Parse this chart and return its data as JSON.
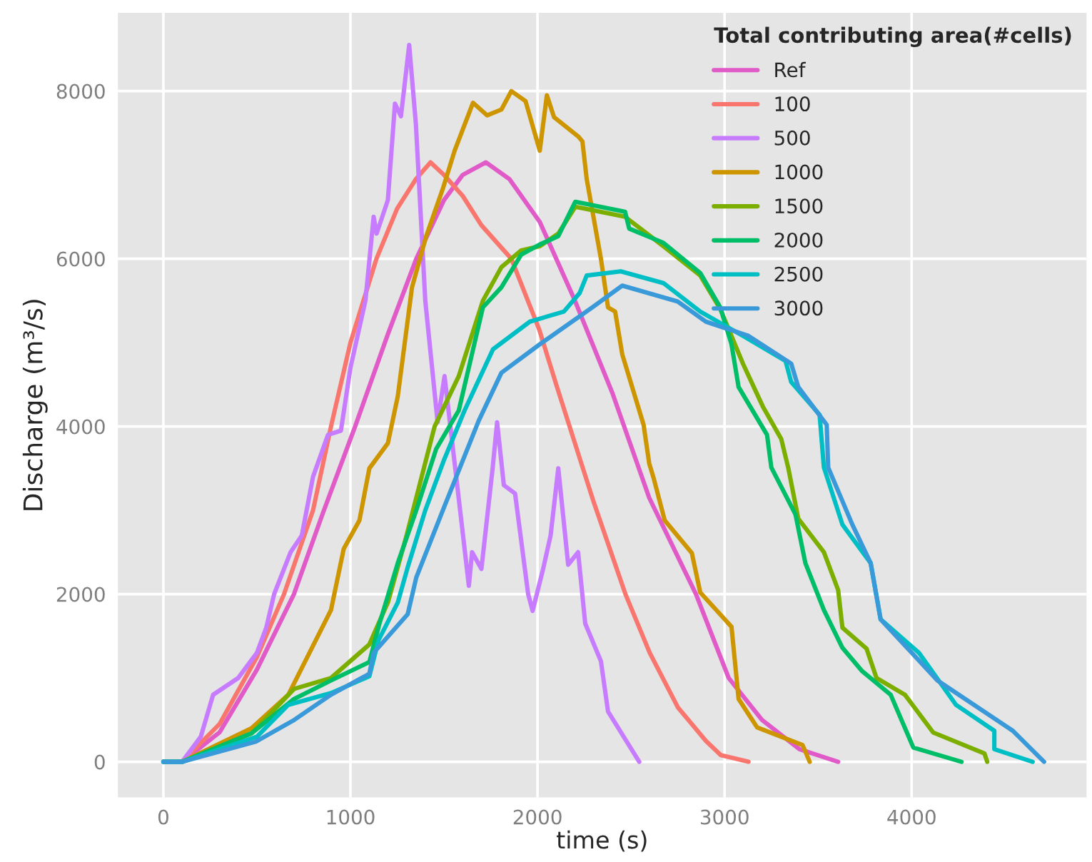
{
  "chart_data": {
    "type": "line",
    "xlabel": "time (s)",
    "ylabel": "Discharge (m³/s)",
    "legend_title": "Total contributing area(#cells)",
    "xlim": [
      -243,
      4935
    ],
    "ylim": [
      -424,
      8932
    ],
    "xticks": [
      0,
      1000,
      2000,
      3000,
      4000
    ],
    "yticks": [
      0,
      2000,
      4000,
      6000,
      8000
    ],
    "grid": true,
    "legend": "top right",
    "marker": "none",
    "line_style": "solid",
    "series": [
      {
        "name": "Ref",
        "color": "#e15bc8",
        "x": [
          0,
          100,
          300,
          500,
          698,
          850,
          1025,
          1200,
          1352,
          1500,
          1600,
          1724,
          1850,
          2012,
          2200,
          2400,
          2597,
          2847,
          3022,
          3200,
          3400,
          3607
        ],
        "values": [
          0,
          0,
          350,
          1100,
          2000,
          2950,
          4000,
          5100,
          6000,
          6700,
          7000,
          7150,
          6950,
          6440,
          5500,
          4400,
          3150,
          2000,
          1000,
          500,
          150,
          0
        ]
      },
      {
        "name": "100",
        "color": "#f8766d",
        "x": [
          0,
          100,
          300,
          500,
          645,
          800,
          896,
          1000,
          1139,
          1250,
          1350,
          1428,
          1500,
          1600,
          1700,
          1860,
          2010,
          2100,
          2200,
          2300,
          2470,
          2600,
          2750,
          2900,
          2980,
          3128
        ],
        "values": [
          0,
          0,
          450,
          1250,
          2000,
          3000,
          4000,
          5000,
          6000,
          6600,
          6950,
          7150,
          7000,
          6750,
          6400,
          6000,
          5150,
          4500,
          3800,
          3100,
          2000,
          1300,
          650,
          250,
          80,
          0
        ]
      },
      {
        "name": "500",
        "color": "#c77cff",
        "x": [
          0,
          100,
          200,
          266,
          400,
          500,
          550,
          592,
          680,
          740,
          800,
          880,
          949,
          1000,
          1080,
          1124,
          1140,
          1200,
          1238,
          1270,
          1314,
          1350,
          1400,
          1466,
          1503,
          1633,
          1650,
          1700,
          1760,
          1784,
          1820,
          1880,
          1950,
          1974,
          2030,
          2070,
          2111,
          2164,
          2217,
          2255,
          2339,
          2377,
          2544
        ],
        "values": [
          0,
          0,
          300,
          800,
          1000,
          1300,
          1600,
          2000,
          2500,
          2700,
          3400,
          3900,
          3950,
          4700,
          5500,
          6500,
          6300,
          6700,
          7850,
          7700,
          8550,
          7600,
          5500,
          4050,
          4600,
          2100,
          2500,
          2300,
          3500,
          4050,
          3300,
          3200,
          2000,
          1800,
          2300,
          2700,
          3500,
          2350,
          2500,
          1650,
          1200,
          600,
          0
        ]
      },
      {
        "name": "1000",
        "color": "#cd9600",
        "x": [
          0,
          100,
          471,
          668,
          896,
          964,
          1048,
          1101,
          1200,
          1253,
          1329,
          1405,
          1496,
          1557,
          1655,
          1731,
          1807,
          1860,
          1936,
          2012,
          2050,
          2088,
          2217,
          2240,
          2263,
          2339,
          2377,
          2415,
          2453,
          2567,
          2597,
          2620,
          2680,
          2825,
          2870,
          3037,
          3075,
          3174,
          3417,
          3455
        ],
        "values": [
          0,
          0,
          400,
          800,
          1810,
          2540,
          2880,
          3500,
          3800,
          4360,
          5660,
          6270,
          6850,
          7290,
          7860,
          7710,
          7780,
          8000,
          7880,
          7290,
          7950,
          7690,
          7460,
          7400,
          6950,
          6000,
          5420,
          5370,
          4860,
          4020,
          3560,
          3390,
          2880,
          2490,
          2020,
          1610,
          750,
          410,
          200,
          0
        ]
      },
      {
        "name": "1500",
        "color": "#7cae00",
        "x": [
          0,
          100,
          471,
          699,
          896,
          1101,
          1200,
          1300,
          1450,
          1579,
          1708,
          1807,
          1913,
          2012,
          2111,
          2202,
          2468,
          2673,
          2870,
          2977,
          3098,
          3204,
          3303,
          3341,
          3394,
          3531,
          3607,
          3630,
          3759,
          3812,
          3964,
          4115,
          4389,
          4404
        ],
        "values": [
          0,
          0,
          340,
          870,
          1000,
          1400,
          1900,
          2700,
          4000,
          4600,
          5500,
          5900,
          6100,
          6150,
          6300,
          6620,
          6500,
          6150,
          5800,
          5400,
          4750,
          4240,
          3850,
          3500,
          2900,
          2500,
          2050,
          1600,
          1350,
          1000,
          800,
          350,
          100,
          0
        ]
      },
      {
        "name": "2000",
        "color": "#00be67",
        "x": [
          0,
          101,
          471,
          699,
          896,
          1101,
          1154,
          1253,
          1352,
          1458,
          1579,
          1708,
          1807,
          1913,
          2012,
          2111,
          2202,
          2468,
          2490,
          2673,
          2870,
          2977,
          3037,
          3075,
          3227,
          3250,
          3379,
          3432,
          3531,
          3630,
          3736,
          3888,
          4009,
          4267
        ],
        "values": [
          0,
          0,
          340,
          750,
          970,
          1190,
          1640,
          2370,
          3000,
          3730,
          4190,
          5420,
          5660,
          6050,
          6170,
          6270,
          6680,
          6560,
          6360,
          6190,
          5830,
          5420,
          4980,
          4470,
          3900,
          3510,
          2950,
          2370,
          1810,
          1360,
          1080,
          800,
          170,
          0
        ]
      },
      {
        "name": "2500",
        "color": "#00bfc4",
        "x": [
          0,
          100,
          500,
          668,
          896,
          1101,
          1150,
          1253,
          1306,
          1400,
          1500,
          1610,
          1762,
          1959,
          2141,
          2225,
          2263,
          2445,
          2673,
          2870,
          3098,
          3326,
          3356,
          3508,
          3531,
          3630,
          3781,
          3834,
          4039,
          4237,
          4442,
          4442,
          4647
        ],
        "values": [
          0,
          0,
          300,
          680,
          820,
          1020,
          1450,
          1900,
          2320,
          3000,
          3600,
          4190,
          4920,
          5250,
          5370,
          5590,
          5800,
          5850,
          5710,
          5370,
          5080,
          4780,
          4530,
          4140,
          3510,
          2830,
          2370,
          1700,
          1300,
          680,
          370,
          150,
          0
        ]
      },
      {
        "name": "3000",
        "color": "#3a9ad9",
        "x": [
          0,
          100,
          494,
          700,
          896,
          1101,
          1124,
          1306,
          1352,
          1503,
          1686,
          1807,
          2012,
          2293,
          2453,
          2749,
          2900,
          3128,
          3356,
          3394,
          3546,
          3554,
          3683,
          3781,
          3834,
          4138,
          4541,
          4708
        ],
        "values": [
          0,
          0,
          240,
          500,
          800,
          1050,
          1300,
          1760,
          2200,
          3050,
          4070,
          4640,
          4980,
          5420,
          5680,
          5490,
          5250,
          5080,
          4750,
          4470,
          4020,
          3510,
          2830,
          2370,
          1700,
          970,
          370,
          0
        ]
      }
    ]
  }
}
